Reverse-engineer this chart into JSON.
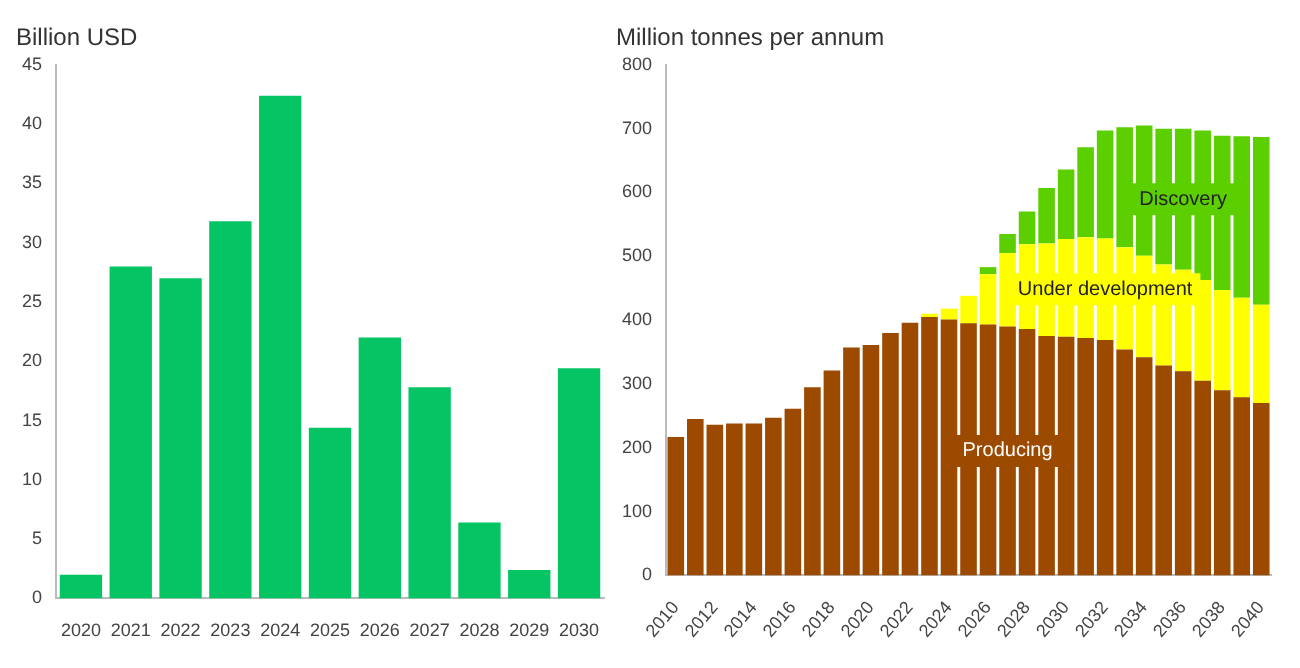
{
  "chart_data": [
    {
      "type": "bar",
      "title": "Billion USD",
      "categories": [
        "2020",
        "2021",
        "2022",
        "2023",
        "2024",
        "2025",
        "2026",
        "2027",
        "2028",
        "2029",
        "2030"
      ],
      "values": [
        2,
        28,
        27,
        31.8,
        42.4,
        14.4,
        22,
        17.8,
        6.4,
        2.4,
        19.4
      ],
      "color": "#04c463",
      "ylim": [
        0,
        45
      ],
      "yticks": [
        0,
        5,
        10,
        15,
        20,
        25,
        30,
        35,
        40,
        45
      ],
      "grid": false,
      "legend": false
    },
    {
      "type": "bar",
      "title": "Million tonnes per annum",
      "stacked": true,
      "categories": [
        "2010",
        null,
        "2012",
        null,
        "2014",
        null,
        "2016",
        null,
        "2018",
        null,
        "2020",
        null,
        "2022",
        null,
        "2024",
        null,
        "2026",
        null,
        "2028",
        null,
        "2030",
        null,
        "2032",
        null,
        "2034",
        null,
        "2036",
        null,
        "2038",
        null,
        "2040"
      ],
      "series": [
        {
          "name": "Producing",
          "color": "#9c4a00",
          "values": [
            217,
            245,
            236,
            238,
            238,
            247,
            261,
            295,
            321,
            357,
            361,
            380,
            396,
            405,
            401,
            395,
            393,
            390,
            386,
            375,
            374,
            372,
            369,
            354,
            342,
            329,
            320,
            305,
            290,
            279,
            270
          ]
        },
        {
          "name": "Under development",
          "color": "#ffff00",
          "values": [
            null,
            null,
            null,
            null,
            null,
            null,
            null,
            null,
            null,
            null,
            null,
            null,
            null,
            5,
            17,
            43,
            79,
            115,
            133,
            145,
            153,
            158,
            159,
            160,
            159,
            158,
            159,
            158,
            157,
            156,
            154
          ]
        },
        {
          "name": "Discovery",
          "color": "#5ccf00",
          "values": [
            null,
            null,
            null,
            null,
            null,
            null,
            null,
            null,
            null,
            null,
            null,
            null,
            null,
            null,
            null,
            null,
            11,
            30,
            51,
            87,
            109,
            141,
            169,
            188,
            204,
            213,
            221,
            234,
            242,
            253,
            263
          ]
        }
      ],
      "ylim": [
        0,
        800
      ],
      "yticks": [
        0,
        100,
        200,
        300,
        400,
        500,
        600,
        700,
        800
      ],
      "grid": false,
      "legend": false
    }
  ]
}
